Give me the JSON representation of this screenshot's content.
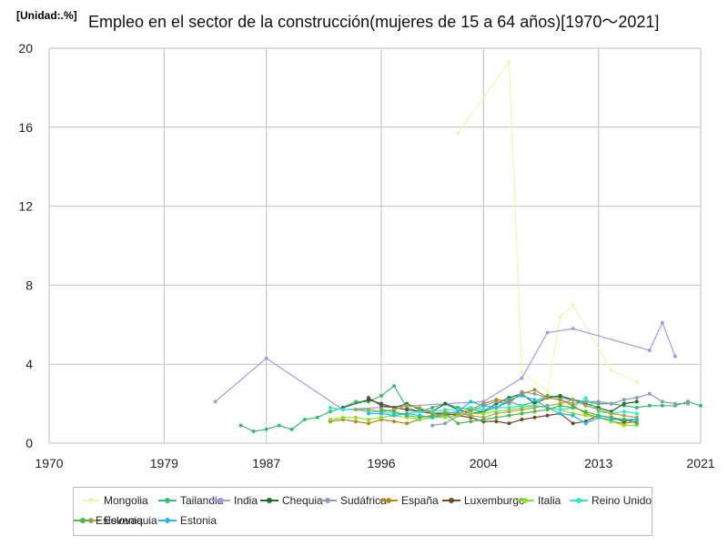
{
  "header": {
    "unit": "[Unidad:.%]",
    "title": "Empleo en el sector de la construcción(mujeres de 15 a 64 años)[1970～2021]"
  },
  "chart_data": {
    "type": "line",
    "title": "Empleo en el sector de la construcción(mujeres de 15 a 64 años)[1970～2021]",
    "unit": "[Unidad:.%]",
    "xlim": [
      1970,
      2021
    ],
    "ylim": [
      0,
      20
    ],
    "x_ticks": [
      "1970",
      "1979",
      "1987",
      "1996",
      "2004",
      "2013",
      "2021"
    ],
    "y_ticks": [
      "0",
      "4",
      "8",
      "12",
      "16",
      "20"
    ],
    "grid": true,
    "legend_position": "bottom",
    "series": [
      {
        "name": "Mongolia",
        "color": "#f0f5b8",
        "points": [
          [
            2002,
            15.7
          ],
          [
            2006,
            19.3
          ],
          [
            2007,
            3.6
          ],
          [
            2009,
            2.6
          ],
          [
            2010,
            6.4
          ],
          [
            2011,
            7.0
          ],
          [
            2014,
            3.7
          ],
          [
            2016,
            3.1
          ]
        ]
      },
      {
        "name": "Tailandia",
        "color": "#3cb878",
        "points": [
          [
            1985,
            0.9
          ],
          [
            1986,
            0.6
          ],
          [
            1987,
            0.7
          ],
          [
            1988,
            0.9
          ],
          [
            1989,
            0.7
          ],
          [
            1990,
            1.2
          ],
          [
            1991,
            1.3
          ],
          [
            1992,
            1.6
          ],
          [
            1993,
            1.8
          ],
          [
            1994,
            2.1
          ],
          [
            1995,
            2.1
          ],
          [
            1996,
            2.4
          ],
          [
            1997,
            2.9
          ],
          [
            1998,
            1.8
          ],
          [
            1999,
            1.6
          ],
          [
            2000,
            1.8
          ],
          [
            2001,
            2.0
          ],
          [
            2002,
            1.8
          ],
          [
            2003,
            1.7
          ],
          [
            2004,
            1.6
          ],
          [
            2005,
            1.8
          ],
          [
            2006,
            2.1
          ],
          [
            2007,
            1.9
          ],
          [
            2008,
            2.1
          ],
          [
            2009,
            2.4
          ],
          [
            2010,
            2.3
          ],
          [
            2011,
            2.2
          ],
          [
            2012,
            2.1
          ],
          [
            2013,
            2.0
          ],
          [
            2014,
            2.0
          ],
          [
            2015,
            1.9
          ],
          [
            2016,
            1.8
          ],
          [
            2017,
            1.9
          ],
          [
            2018,
            1.9
          ],
          [
            2019,
            1.9
          ],
          [
            2020,
            2.1
          ],
          [
            2021,
            1.9
          ]
        ]
      },
      {
        "name": "India",
        "color": "#a79ae0",
        "points": [
          [
            1983,
            2.1
          ],
          [
            1987,
            4.3
          ],
          [
            1993,
            1.7
          ],
          [
            2004,
            2.1
          ],
          [
            2007,
            3.3
          ],
          [
            2009,
            5.6
          ],
          [
            2011,
            5.8
          ],
          [
            2017,
            4.7
          ],
          [
            2018,
            6.1
          ],
          [
            2019,
            4.4
          ]
        ]
      },
      {
        "name": "Chequia",
        "color": "#1f6b32",
        "points": [
          [
            1993,
            1.8
          ],
          [
            1995,
            2.2
          ],
          [
            1996,
            2.0
          ],
          [
            1997,
            1.8
          ],
          [
            1998,
            2.0
          ],
          [
            1999,
            1.7
          ],
          [
            2000,
            1.6
          ],
          [
            2001,
            2.0
          ],
          [
            2002,
            1.7
          ],
          [
            2003,
            1.5
          ],
          [
            2004,
            1.6
          ],
          [
            2005,
            2.0
          ],
          [
            2006,
            2.3
          ],
          [
            2007,
            2.5
          ],
          [
            2008,
            2.0
          ],
          [
            2009,
            2.3
          ],
          [
            2010,
            2.4
          ],
          [
            2011,
            2.2
          ],
          [
            2012,
            2.0
          ],
          [
            2013,
            1.8
          ],
          [
            2014,
            1.6
          ],
          [
            2015,
            2.0
          ],
          [
            2016,
            2.1
          ]
        ]
      },
      {
        "name": "Sudáfrica",
        "color": "#8e9bb0",
        "points": [
          [
            2000,
            0.9
          ],
          [
            2001,
            1.0
          ],
          [
            2002,
            1.4
          ],
          [
            2003,
            1.6
          ],
          [
            2004,
            1.9
          ],
          [
            2005,
            2.1
          ],
          [
            2006,
            2.0
          ],
          [
            2007,
            2.6
          ],
          [
            2008,
            2.5
          ],
          [
            2009,
            2.3
          ],
          [
            2010,
            2.2
          ],
          [
            2011,
            2.0
          ],
          [
            2012,
            2.1
          ],
          [
            2013,
            2.1
          ],
          [
            2014,
            2.0
          ],
          [
            2015,
            2.2
          ],
          [
            2016,
            2.3
          ],
          [
            2017,
            2.5
          ],
          [
            2018,
            2.1
          ],
          [
            2019,
            2.0
          ],
          [
            2020,
            2.0
          ]
        ]
      },
      {
        "name": "España",
        "color": "#b08a1a",
        "points": [
          [
            1992,
            1.1
          ],
          [
            1993,
            1.2
          ],
          [
            1994,
            1.1
          ],
          [
            1995,
            1.0
          ],
          [
            1996,
            1.2
          ],
          [
            1997,
            1.1
          ],
          [
            1998,
            1.0
          ],
          [
            1999,
            1.2
          ],
          [
            2000,
            1.3
          ],
          [
            2001,
            1.4
          ],
          [
            2002,
            1.5
          ],
          [
            2003,
            1.7
          ],
          [
            2004,
            2.0
          ],
          [
            2005,
            2.2
          ],
          [
            2006,
            2.1
          ],
          [
            2007,
            2.5
          ],
          [
            2008,
            2.7
          ],
          [
            2009,
            2.3
          ],
          [
            2010,
            2.2
          ],
          [
            2011,
            1.9
          ],
          [
            2012,
            1.5
          ],
          [
            2013,
            1.3
          ],
          [
            2014,
            1.1
          ],
          [
            2015,
            1.0
          ],
          [
            2016,
            1.1
          ]
        ]
      },
      {
        "name": "Luxemburgo",
        "color": "#6b4a2a",
        "points": [
          [
            1995,
            2.3
          ],
          [
            1996,
            1.9
          ],
          [
            1997,
            1.8
          ],
          [
            1998,
            1.7
          ],
          [
            1999,
            1.6
          ],
          [
            2000,
            1.5
          ],
          [
            2001,
            1.5
          ],
          [
            2002,
            1.4
          ],
          [
            2003,
            1.3
          ],
          [
            2004,
            1.1
          ],
          [
            2005,
            1.1
          ],
          [
            2006,
            1.0
          ],
          [
            2007,
            1.2
          ],
          [
            2008,
            1.3
          ],
          [
            2009,
            1.4
          ],
          [
            2010,
            1.5
          ],
          [
            2011,
            1.0
          ],
          [
            2012,
            1.1
          ],
          [
            2013,
            1.4
          ],
          [
            2014,
            1.3
          ],
          [
            2015,
            1.1
          ],
          [
            2016,
            1.2
          ]
        ]
      },
      {
        "name": "Italia",
        "color": "#8be02a",
        "points": [
          [
            1992,
            1.2
          ],
          [
            1993,
            1.3
          ],
          [
            1994,
            1.3
          ],
          [
            1995,
            1.2
          ],
          [
            1996,
            1.3
          ],
          [
            1997,
            1.4
          ],
          [
            1998,
            1.3
          ],
          [
            1999,
            1.2
          ],
          [
            2000,
            1.3
          ],
          [
            2001,
            1.3
          ],
          [
            2002,
            1.4
          ],
          [
            2003,
            1.5
          ],
          [
            2004,
            1.5
          ],
          [
            2005,
            1.6
          ],
          [
            2006,
            1.7
          ],
          [
            2007,
            1.8
          ],
          [
            2008,
            1.9
          ],
          [
            2009,
            1.8
          ],
          [
            2010,
            1.7
          ],
          [
            2011,
            1.5
          ],
          [
            2012,
            1.4
          ],
          [
            2013,
            1.3
          ],
          [
            2014,
            1.1
          ],
          [
            2015,
            0.9
          ],
          [
            2016,
            0.9
          ]
        ]
      },
      {
        "name": "Reino Unido",
        "color": "#2ee8c6",
        "points": [
          [
            1992,
            1.8
          ],
          [
            1993,
            1.7
          ],
          [
            1994,
            1.7
          ],
          [
            1995,
            1.6
          ],
          [
            1996,
            1.6
          ],
          [
            1997,
            1.5
          ],
          [
            1998,
            1.5
          ],
          [
            1999,
            1.6
          ],
          [
            2000,
            1.6
          ],
          [
            2001,
            1.7
          ],
          [
            2002,
            1.7
          ],
          [
            2003,
            1.8
          ],
          [
            2004,
            1.7
          ],
          [
            2005,
            1.8
          ],
          [
            2006,
            1.8
          ],
          [
            2007,
            1.9
          ],
          [
            2008,
            1.9
          ],
          [
            2009,
            1.8
          ],
          [
            2010,
            1.7
          ],
          [
            2011,
            1.8
          ],
          [
            2012,
            2.3
          ],
          [
            2013,
            1.6
          ],
          [
            2014,
            1.5
          ],
          [
            2015,
            1.6
          ],
          [
            2016,
            1.5
          ]
        ]
      },
      {
        "name": "Eslovaquia",
        "color": "#a8a44a",
        "points": [
          [
            1994,
            1.7
          ],
          [
            1995,
            1.7
          ],
          [
            1996,
            1.6
          ],
          [
            1997,
            1.7
          ],
          [
            1998,
            1.9
          ],
          [
            1999,
            1.8
          ],
          [
            2000,
            1.5
          ],
          [
            2001,
            1.6
          ],
          [
            2002,
            1.5
          ],
          [
            2003,
            1.4
          ],
          [
            2004,
            1.3
          ],
          [
            2005,
            1.5
          ],
          [
            2006,
            1.6
          ],
          [
            2007,
            1.7
          ],
          [
            2008,
            1.8
          ],
          [
            2009,
            1.9
          ],
          [
            2010,
            2.0
          ],
          [
            2011,
            2.2
          ],
          [
            2012,
            1.9
          ],
          [
            2013,
            1.7
          ],
          [
            2014,
            1.5
          ],
          [
            2015,
            1.4
          ],
          [
            2016,
            1.3
          ]
        ]
      },
      {
        "name": "Estonia",
        "color": "#27b8e8",
        "points": [
          [
            1995,
            1.5
          ],
          [
            1996,
            1.5
          ],
          [
            1997,
            1.4
          ],
          [
            1998,
            1.5
          ],
          [
            1999,
            1.4
          ],
          [
            2000,
            1.3
          ],
          [
            2001,
            1.5
          ],
          [
            2002,
            1.6
          ],
          [
            2003,
            2.1
          ],
          [
            2004,
            1.9
          ],
          [
            2005,
            1.8
          ],
          [
            2006,
            2.2
          ],
          [
            2007,
            2.4
          ],
          [
            2008,
            2.2
          ],
          [
            2009,
            1.8
          ],
          [
            2010,
            1.5
          ],
          [
            2011,
            1.4
          ],
          [
            2012,
            1.0
          ],
          [
            2013,
            1.3
          ],
          [
            2014,
            1.2
          ],
          [
            2015,
            1.2
          ],
          [
            2016,
            1.2
          ]
        ]
      },
      {
        "name": "Eslovenia",
        "color": "#4cb848",
        "points": [
          [
            1996,
            1.7
          ],
          [
            1997,
            1.6
          ],
          [
            1998,
            1.4
          ],
          [
            1999,
            1.3
          ],
          [
            2000,
            1.4
          ],
          [
            2001,
            1.5
          ],
          [
            2002,
            1.0
          ],
          [
            2003,
            1.1
          ],
          [
            2004,
            1.2
          ],
          [
            2005,
            1.3
          ],
          [
            2006,
            1.4
          ],
          [
            2007,
            1.5
          ],
          [
            2008,
            1.6
          ],
          [
            2009,
            1.7
          ],
          [
            2010,
            1.9
          ],
          [
            2011,
            1.8
          ],
          [
            2012,
            1.6
          ],
          [
            2013,
            1.4
          ],
          [
            2014,
            1.3
          ],
          [
            2015,
            1.2
          ],
          [
            2016,
            1.0
          ]
        ]
      }
    ]
  }
}
